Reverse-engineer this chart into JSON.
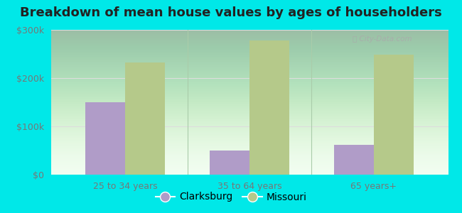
{
  "title": "Breakdown of mean house values by ages of householders",
  "categories": [
    "25 to 34 years",
    "35 to 64 years",
    "65 years+"
  ],
  "clarksburg_values": [
    150000,
    50000,
    62000
  ],
  "missouri_values": [
    232000,
    278000,
    248000
  ],
  "clarksburg_color": "#b09cc8",
  "missouri_color": "#b5c98a",
  "background_outer": "#00e8e8",
  "background_inner_start": "#c8eec8",
  "background_inner_end": "#f0fff0",
  "ylim": [
    0,
    300000
  ],
  "yticks": [
    0,
    100000,
    200000,
    300000
  ],
  "ytick_labels": [
    "$0",
    "$100k",
    "$200k",
    "$300k"
  ],
  "legend_labels": [
    "Clarksburg",
    "Missouri"
  ],
  "bar_width": 0.32,
  "title_fontsize": 13,
  "tick_fontsize": 9,
  "legend_fontsize": 10,
  "grid_color": "#dddddd",
  "tick_color": "#777777",
  "divider_color": "#aaccaa"
}
